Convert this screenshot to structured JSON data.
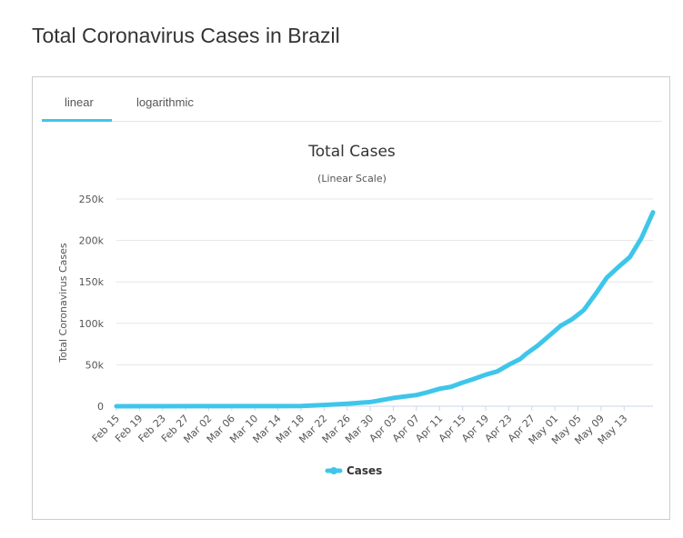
{
  "page_title": "Total Coronavirus Cases in Brazil",
  "tabs": [
    {
      "label": "linear",
      "active": true
    },
    {
      "label": "logarithmic",
      "active": false
    }
  ],
  "accent_color": "#3ec6ea",
  "chart_data": {
    "type": "line",
    "title": "Total Cases",
    "subtitle": "(Linear Scale)",
    "ylabel": "Total Coronavirus Cases",
    "xlabel": "",
    "ylim": [
      0,
      250000
    ],
    "y_ticks": [
      0,
      50000,
      100000,
      150000,
      200000,
      250000
    ],
    "y_tick_labels": [
      "0",
      "50k",
      "100k",
      "150k",
      "200k",
      "250k"
    ],
    "x_tick_labels": [
      "Feb 15",
      "Feb 19",
      "Feb 23",
      "Feb 27",
      "Mar 02",
      "Mar 06",
      "Mar 10",
      "Mar 14",
      "Mar 18",
      "Mar 22",
      "Mar 26",
      "Mar 30",
      "Apr 03",
      "Apr 07",
      "Apr 11",
      "Apr 15",
      "Apr 19",
      "Apr 23",
      "Apr 27",
      "May 01",
      "May 05",
      "May 09",
      "May 13"
    ],
    "grid": true,
    "legend_position": "bottom",
    "series": [
      {
        "name": "Cases",
        "color": "#3ec6ea",
        "x": [
          "Feb 15",
          "Mar 14",
          "Mar 18",
          "Mar 22",
          "Mar 26",
          "Mar 30",
          "Apr 03",
          "Apr 07",
          "Apr 09",
          "Apr 11",
          "Apr 13",
          "Apr 15",
          "Apr 17",
          "Apr 19",
          "Apr 21",
          "Apr 23",
          "Apr 25",
          "Apr 26",
          "Apr 28",
          "Apr 30",
          "May 02",
          "May 04",
          "May 06",
          "May 08",
          "May 10",
          "May 12",
          "May 14",
          "May 16",
          "May 18"
        ],
        "values": [
          0,
          100,
          300,
          1500,
          3000,
          5000,
          10000,
          13500,
          17000,
          21000,
          23500,
          28500,
          33000,
          38000,
          42000,
          50000,
          57000,
          63000,
          73000,
          85000,
          97000,
          105000,
          116000,
          135000,
          155000,
          168000,
          180000,
          203000,
          234000
        ]
      }
    ]
  }
}
